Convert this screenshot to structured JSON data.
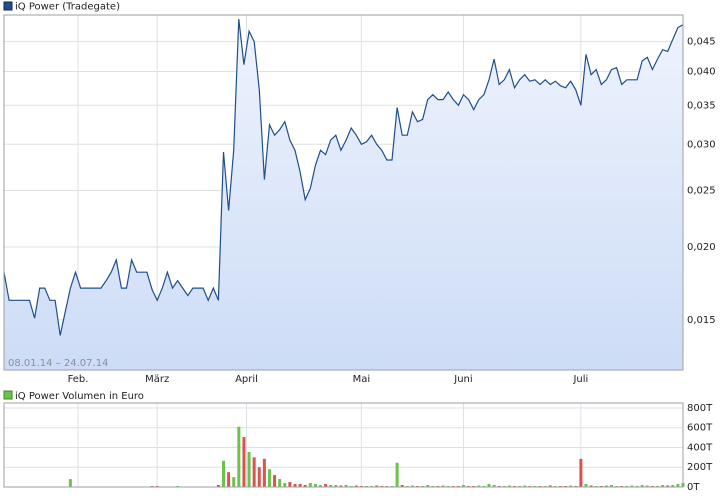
{
  "chart_data": [
    {
      "type": "line",
      "name": "iQ Power (Tradegate)",
      "color": "#1f4e8c",
      "area": true,
      "log_scale": true,
      "grid": true,
      "range_label": "08.01.14 – 24.07.14",
      "values": [
        0.0181,
        0.0162,
        0.0162,
        0.0162,
        0.0162,
        0.0162,
        0.0151,
        0.017,
        0.017,
        0.0162,
        0.0162,
        0.0141,
        0.0155,
        0.017,
        0.0181,
        0.017,
        0.017,
        0.017,
        0.017,
        0.017,
        0.0175,
        0.0181,
        0.019,
        0.017,
        0.017,
        0.019,
        0.0181,
        0.0181,
        0.0181,
        0.0169,
        0.0162,
        0.017,
        0.0181,
        0.017,
        0.0175,
        0.017,
        0.0165,
        0.017,
        0.017,
        0.017,
        0.0162,
        0.017,
        0.0162,
        0.0291,
        0.0231,
        0.0293,
        0.0492,
        0.0411,
        0.0469,
        0.045,
        0.0372,
        0.0261,
        0.0324,
        0.0311,
        0.0318,
        0.0328,
        0.0305,
        0.0293,
        0.0269,
        0.0241,
        0.0252,
        0.0276,
        0.0293,
        0.0288,
        0.0305,
        0.0311,
        0.0293,
        0.0305,
        0.032,
        0.0311,
        0.03,
        0.0303,
        0.0311,
        0.03,
        0.0293,
        0.0282,
        0.0282,
        0.0347,
        0.0311,
        0.0311,
        0.0341,
        0.0328,
        0.0331,
        0.0358,
        0.0365,
        0.0358,
        0.0358,
        0.0369,
        0.0358,
        0.035,
        0.0365,
        0.0358,
        0.0344,
        0.0358,
        0.0365,
        0.0387,
        0.042,
        0.038,
        0.0387,
        0.0403,
        0.0375,
        0.0387,
        0.0395,
        0.0385,
        0.0387,
        0.038,
        0.0387,
        0.038,
        0.0385,
        0.0378,
        0.0375,
        0.0385,
        0.0372,
        0.035,
        0.0428,
        0.0395,
        0.0403,
        0.038,
        0.0387,
        0.0403,
        0.0406,
        0.038,
        0.0387,
        0.0387,
        0.0387,
        0.0417,
        0.0423,
        0.0403,
        0.042,
        0.0436,
        0.0433,
        0.0454,
        0.0476,
        0.0481
      ],
      "xlim": [
        0,
        133
      ],
      "xticks": [
        {
          "value": 14.5,
          "label": "Feb."
        },
        {
          "value": 30,
          "label": "März"
        },
        {
          "value": 47.5,
          "label": "April"
        },
        {
          "value": 70,
          "label": "Mai"
        },
        {
          "value": 90,
          "label": "Juni"
        },
        {
          "value": 113,
          "label": "Juli"
        }
      ],
      "ylim": [
        0.0123,
        0.05
      ],
      "yticks": [
        {
          "value": 0.015,
          "label": "0,015"
        },
        {
          "value": 0.02,
          "label": "0,020"
        },
        {
          "value": 0.025,
          "label": "0,025"
        },
        {
          "value": 0.03,
          "label": "0,030"
        },
        {
          "value": 0.035,
          "label": "0,035"
        },
        {
          "value": 0.04,
          "label": "0,040"
        },
        {
          "value": 0.045,
          "label": "0,045"
        }
      ]
    },
    {
      "type": "bar",
      "name": "iQ Power Volumen in Euro",
      "color": "#6cc24a",
      "up_color": "#6cc24a",
      "down_color": "#d9534f",
      "grid": true,
      "values": [
        0,
        5,
        0,
        0,
        5,
        0,
        0,
        5,
        0,
        0,
        0,
        5,
        0,
        80,
        5,
        0,
        0,
        0,
        5,
        0,
        0,
        0,
        5,
        0,
        0,
        5,
        0,
        0,
        0,
        10,
        10,
        5,
        0,
        5,
        10,
        5,
        5,
        5,
        5,
        5,
        5,
        5,
        20,
        265,
        150,
        100,
        610,
        505,
        355,
        300,
        200,
        285,
        180,
        120,
        80,
        40,
        50,
        30,
        30,
        20,
        40,
        30,
        20,
        30,
        20,
        20,
        15,
        20,
        10,
        15,
        10,
        10,
        10,
        15,
        10,
        10,
        10,
        245,
        20,
        10,
        15,
        10,
        10,
        20,
        10,
        10,
        15,
        10,
        10,
        10,
        20,
        10,
        10,
        15,
        10,
        30,
        20,
        10,
        10,
        15,
        10,
        10,
        15,
        10,
        10,
        10,
        10,
        15,
        10,
        10,
        10,
        15,
        10,
        285,
        30,
        15,
        10,
        10,
        15,
        20,
        10,
        10,
        10,
        15,
        10,
        20,
        15,
        10,
        10,
        20,
        15,
        20,
        30,
        40
      ],
      "ylim": [
        0,
        850
      ],
      "yticks": [
        {
          "value": 0,
          "label": "0T"
        },
        {
          "value": 200,
          "label": "200T"
        },
        {
          "value": 400,
          "label": "400T"
        },
        {
          "value": 600,
          "label": "600T"
        },
        {
          "value": 800,
          "label": "800T"
        }
      ]
    }
  ]
}
